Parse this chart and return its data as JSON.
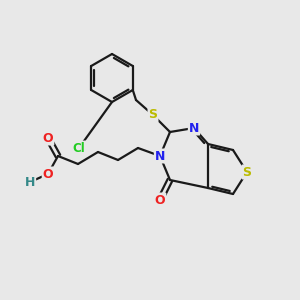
{
  "bg_color": "#e8e8e8",
  "bond_color": "#1a1a1a",
  "colors": {
    "N": "#2222ee",
    "S_thiophene": "#bbbb00",
    "S_sulfide": "#bbbb00",
    "O": "#ee2222",
    "Cl": "#22cc22",
    "H": "#338888",
    "C": "#1a1a1a"
  }
}
